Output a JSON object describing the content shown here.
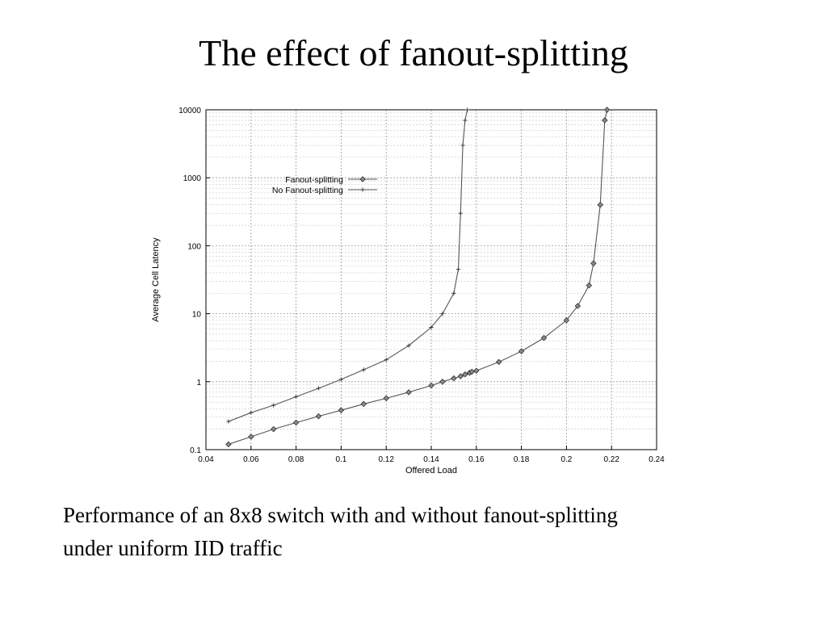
{
  "slide": {
    "title": "The effect of fanout-splitting",
    "caption_line1": "Performance of an 8x8 switch with and without fanout-splitting",
    "caption_line2": "under uniform IID traffic"
  },
  "chart_data": {
    "type": "line",
    "xlabel": "Offered Load",
    "ylabel": "Average Cell Latency",
    "xlim": [
      0.04,
      0.24
    ],
    "ylim": [
      0.1,
      10000
    ],
    "yscale": "log",
    "grid": true,
    "legend": "upper-left",
    "xticks": [
      0.04,
      0.06,
      0.08,
      0.1,
      0.12,
      0.14,
      0.16,
      0.18,
      0.2,
      0.22,
      0.24
    ],
    "xtick_labels": [
      "0.04",
      "0.06",
      "0.08",
      "0.1",
      "0.12",
      "0.14",
      "0.16",
      "0.18",
      "0.2",
      "0.22",
      "0.24"
    ],
    "yticks": [
      0.1,
      1,
      10,
      100,
      1000,
      10000
    ],
    "ytick_labels": [
      "0.1",
      "1",
      "10",
      "100",
      "1000",
      "10000"
    ],
    "series": [
      {
        "name": "Fanout-splitting",
        "marker": "diamond",
        "x": [
          0.05,
          0.06,
          0.07,
          0.08,
          0.09,
          0.1,
          0.11,
          0.12,
          0.13,
          0.14,
          0.145,
          0.15,
          0.153,
          0.155,
          0.157,
          0.158,
          0.16,
          0.17,
          0.18,
          0.19,
          0.2,
          0.205,
          0.21,
          0.212,
          0.215,
          0.217,
          0.218
        ],
        "y": [
          0.12,
          0.155,
          0.2,
          0.25,
          0.31,
          0.38,
          0.47,
          0.57,
          0.7,
          0.88,
          1.0,
          1.12,
          1.2,
          1.28,
          1.35,
          1.4,
          1.45,
          1.95,
          2.8,
          4.4,
          8.0,
          13,
          26,
          55,
          400,
          7000,
          10000
        ]
      },
      {
        "name": "No Fanout-splitting",
        "marker": "plus",
        "x": [
          0.05,
          0.06,
          0.07,
          0.08,
          0.09,
          0.1,
          0.11,
          0.12,
          0.13,
          0.14,
          0.145,
          0.15,
          0.152,
          0.153,
          0.154,
          0.155,
          0.156
        ],
        "y": [
          0.26,
          0.35,
          0.45,
          0.6,
          0.8,
          1.08,
          1.5,
          2.1,
          3.4,
          6.3,
          10,
          20,
          45,
          300,
          3000,
          7000,
          10000
        ]
      }
    ]
  }
}
